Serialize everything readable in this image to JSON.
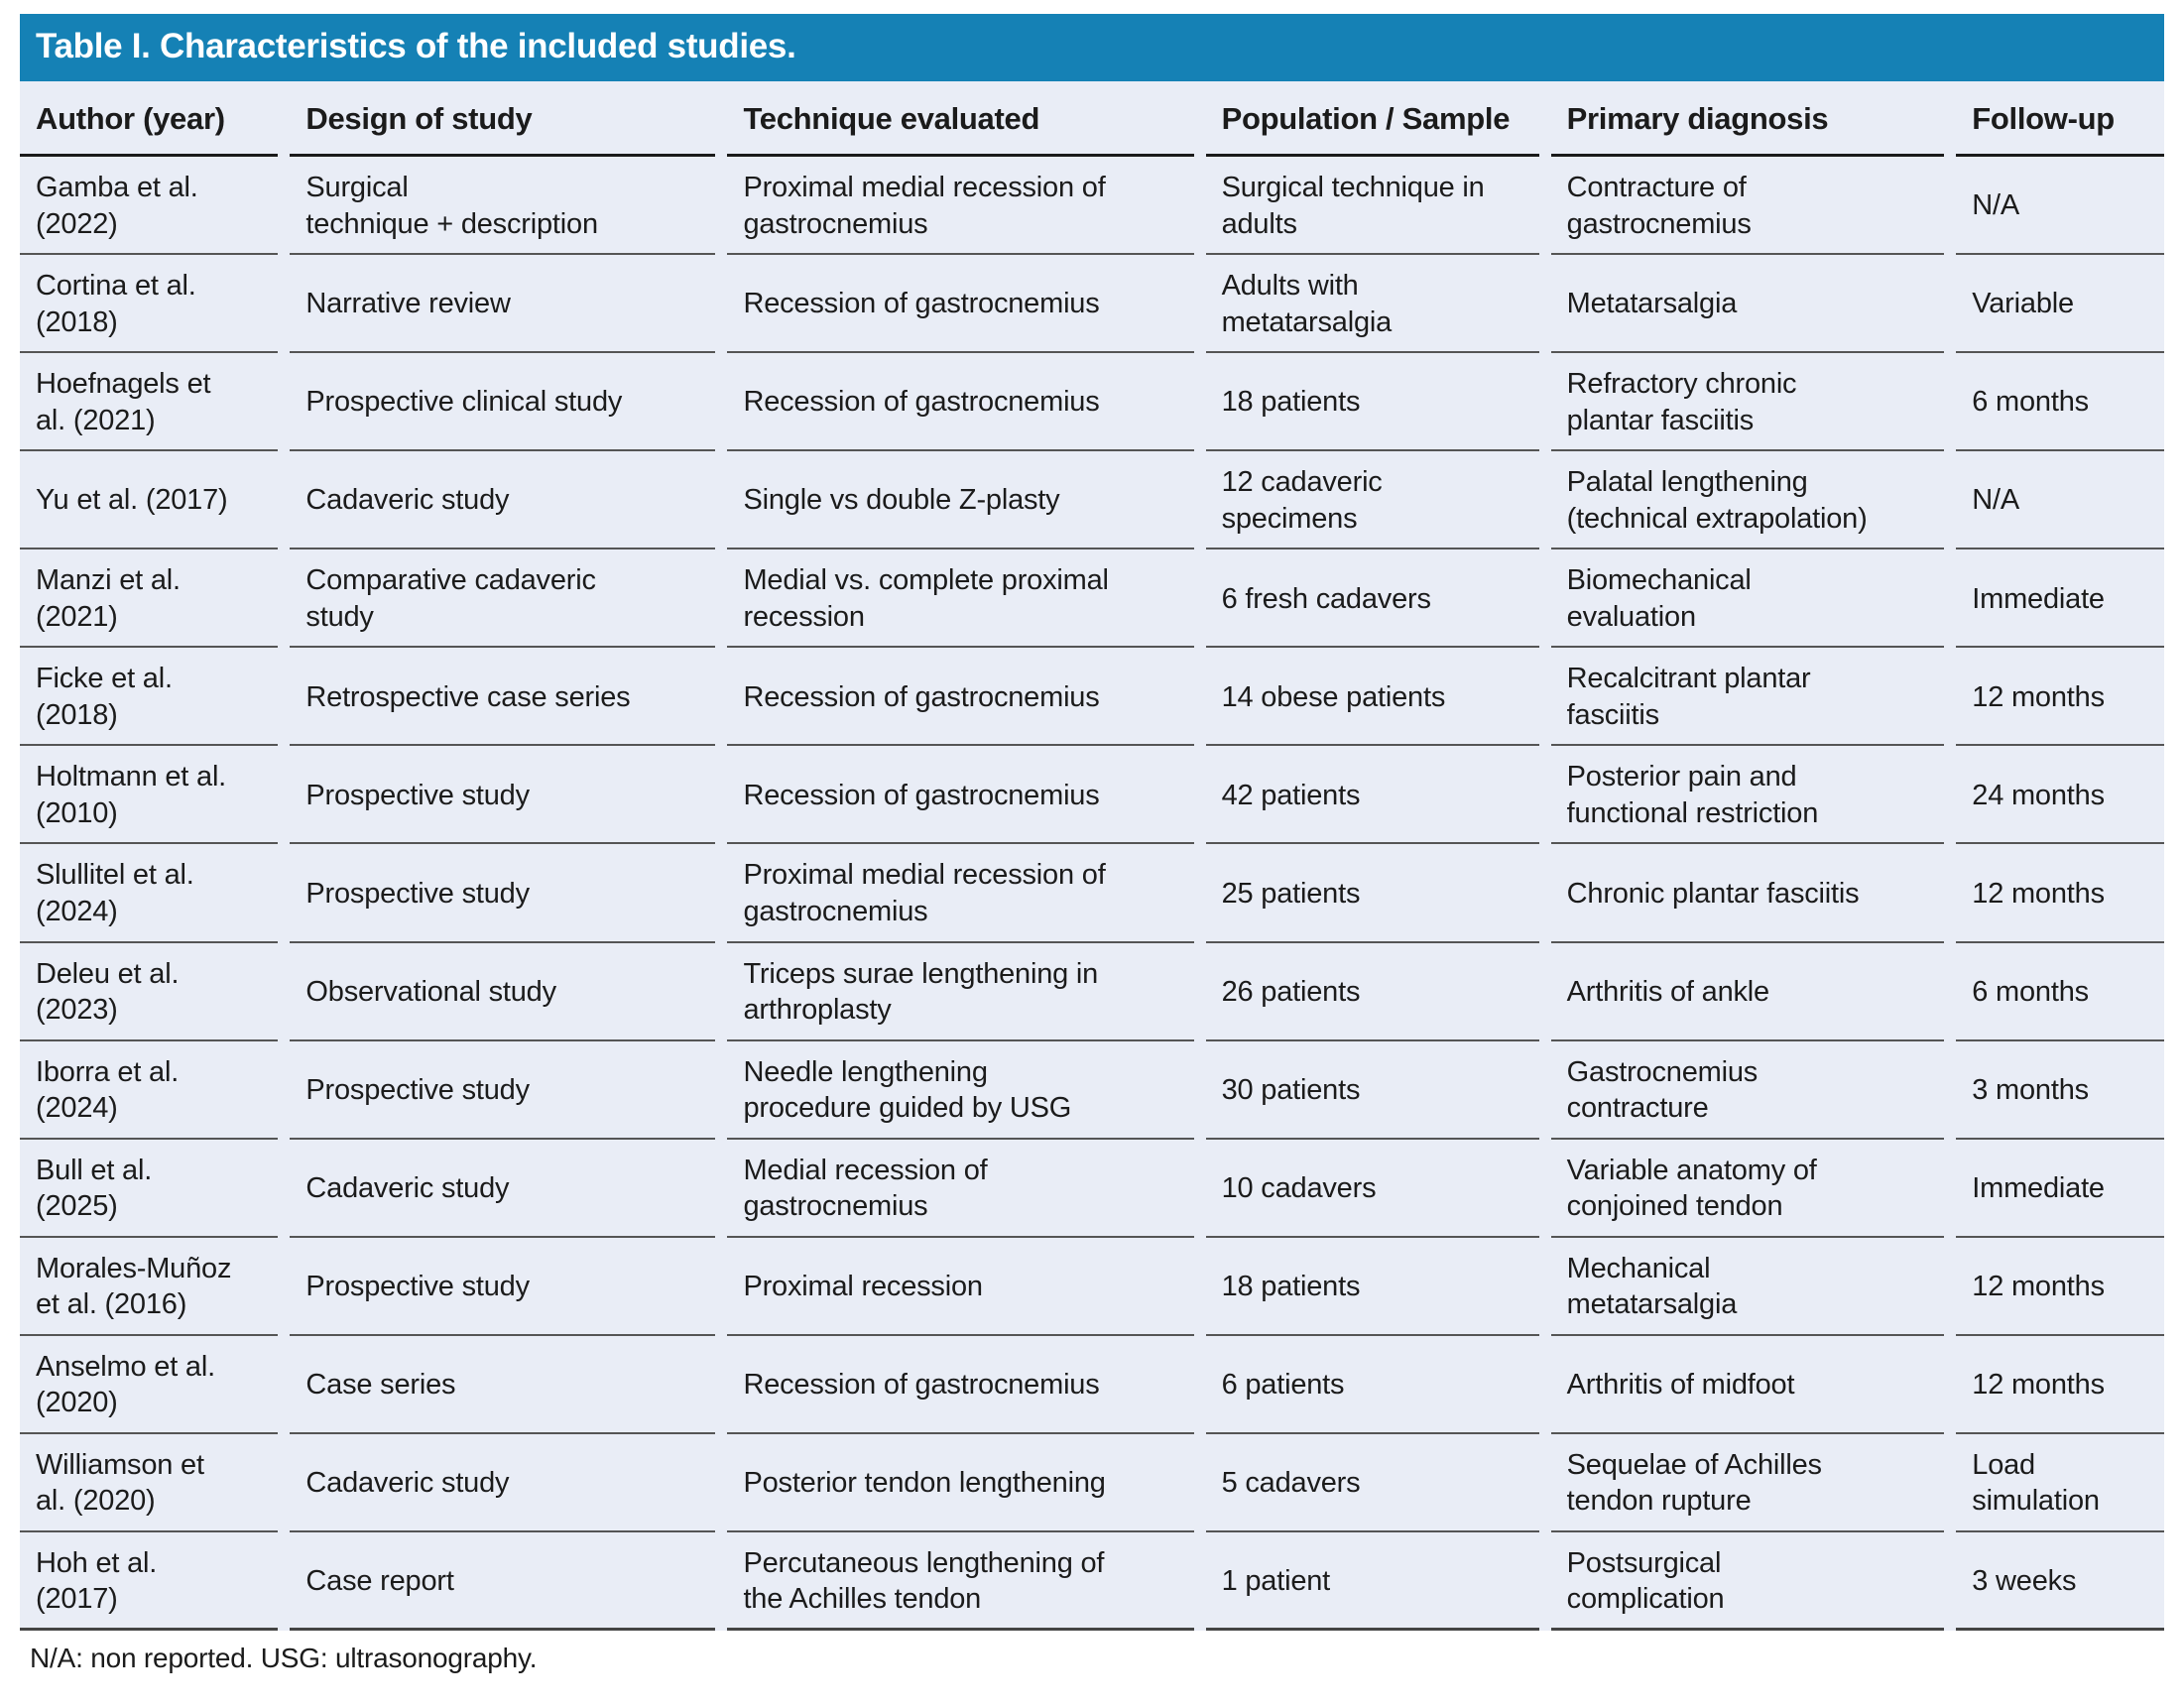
{
  "colors": {
    "title_bar_bg": "#1581b5",
    "title_text": "#ffffff",
    "row_bg": "#e9edf6",
    "body_text": "#1b1b1b"
  },
  "table": {
    "title": "Table I. Characteristics of the included studies.",
    "columns": [
      "Author (year)",
      "Design of study",
      "Technique evaluated",
      "Population / Sample",
      "Primary diagnosis",
      "Follow-up"
    ],
    "rows": [
      [
        "Gamba et al.\n(2022)",
        "Surgical\ntechnique + description",
        "Proximal medial recession of\ngastrocnemius",
        "Surgical technique in\nadults",
        "Contracture of\ngastrocnemius",
        "N/A"
      ],
      [
        "Cortina et al.\n(2018)",
        "Narrative review",
        "Recession of gastrocnemius",
        "Adults with\nmetatarsalgia",
        "Metatarsalgia",
        "Variable"
      ],
      [
        "Hoefnagels et\nal. (2021)",
        "Prospective clinical study",
        "Recession of gastrocnemius",
        "18 patients",
        "Refractory chronic\nplantar fasciitis",
        "6 months"
      ],
      [
        "Yu et al. (2017)",
        "Cadaveric study",
        "Single vs double Z-plasty",
        "12 cadaveric\nspecimens",
        "Palatal lengthening\n(technical extrapolation)",
        "N/A"
      ],
      [
        "Manzi et al.\n(2021)",
        "Comparative cadaveric\nstudy",
        "Medial vs. complete proximal\nrecession",
        "6 fresh cadavers",
        "Biomechanical\nevaluation",
        "Immediate"
      ],
      [
        "Ficke et al.\n(2018)",
        "Retrospective case series",
        "Recession of gastrocnemius",
        "14 obese patients",
        "Recalcitrant plantar\nfasciitis",
        "12 months"
      ],
      [
        "Holtmann et al.\n(2010)",
        "Prospective study",
        "Recession of gastrocnemius",
        "42 patients",
        "Posterior pain and\nfunctional restriction",
        "24 months"
      ],
      [
        "Slullitel et al.\n(2024)",
        "Prospective study",
        "Proximal medial recession of\ngastrocnemius",
        "25 patients",
        "Chronic plantar fasciitis",
        "12 months"
      ],
      [
        "Deleu et al.\n(2023)",
        "Observational study",
        "Triceps surae lengthening in\narthroplasty",
        "26 patients",
        "Arthritis of ankle",
        "6 months"
      ],
      [
        "Iborra et al.\n(2024)",
        "Prospective study",
        "Needle lengthening\nprocedure guided by USG",
        "30 patients",
        "Gastrocnemius\ncontracture",
        "3 months"
      ],
      [
        "Bull et al.\n(2025)",
        "Cadaveric study",
        "Medial recession of\ngastrocnemius",
        "10 cadavers",
        "Variable anatomy of\nconjoined tendon",
        "Immediate"
      ],
      [
        "Morales-Muñoz\net al. (2016)",
        "Prospective study",
        "Proximal recession",
        "18 patients",
        "Mechanical\nmetatarsalgia",
        "12 months"
      ],
      [
        "Anselmo et al.\n(2020)",
        "Case series",
        "Recession of gastrocnemius",
        "6 patients",
        "Arthritis of midfoot",
        "12 months"
      ],
      [
        "Williamson et\nal. (2020)",
        "Cadaveric study",
        "Posterior tendon lengthening",
        "5 cadavers",
        "Sequelae of Achilles\ntendon rupture",
        "Load\nsimulation"
      ],
      [
        "Hoh et al.\n(2017)",
        "Case report",
        "Percutaneous lengthening of\nthe Achilles tendon",
        "1 patient",
        "Postsurgical\ncomplication",
        "3 weeks"
      ]
    ],
    "footnote": "N/A: non reported. USG: ultrasonography."
  }
}
